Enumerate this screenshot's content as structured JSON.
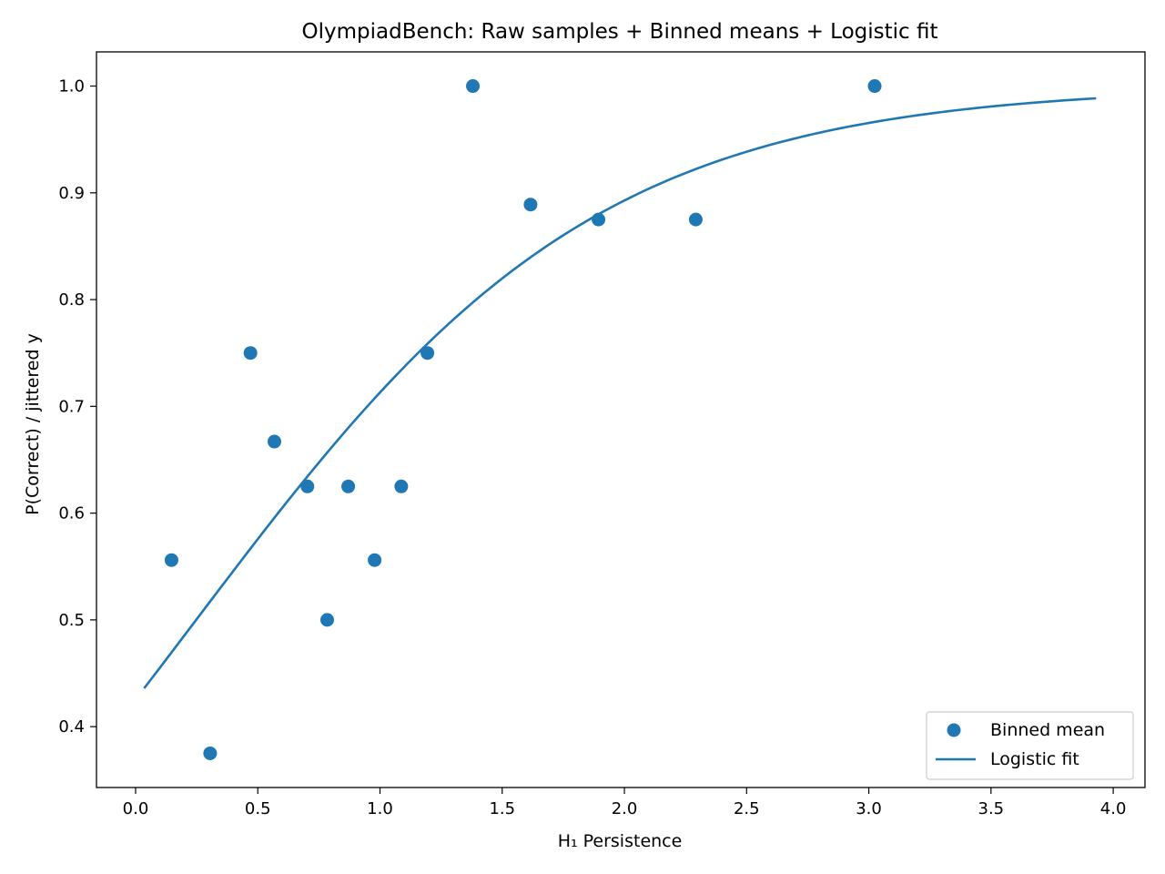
{
  "chart_data": {
    "type": "scatter",
    "title": "OlympiadBench: Raw samples + Binned means + Logistic fit",
    "xlabel": "H₁ Persistence",
    "ylabel": "P(Correct) / jittered y",
    "xlim": [
      -0.16,
      4.13
    ],
    "ylim": [
      0.343,
      1.032
    ],
    "xticks": [
      0.0,
      0.5,
      1.0,
      1.5,
      2.0,
      2.5,
      3.0,
      3.5,
      4.0
    ],
    "xtick_labels": [
      "0.0",
      "0.5",
      "1.0",
      "1.5",
      "2.0",
      "2.5",
      "3.0",
      "3.5",
      "4.0"
    ],
    "yticks": [
      0.4,
      0.5,
      0.6,
      0.7,
      0.8,
      0.9,
      1.0
    ],
    "ytick_labels": [
      "0.4",
      "0.5",
      "0.6",
      "0.7",
      "0.8",
      "0.9",
      "1.0"
    ],
    "color": "#1f77b4",
    "series": [
      {
        "name": "Binned mean",
        "kind": "scatter",
        "x": [
          0.147,
          0.305,
          0.47,
          0.568,
          0.703,
          0.784,
          0.87,
          0.978,
          1.087,
          1.194,
          1.38,
          1.616,
          1.894,
          2.292,
          3.024
        ],
        "y": [
          0.556,
          0.375,
          0.75,
          0.667,
          0.625,
          0.5,
          0.625,
          0.556,
          0.625,
          0.75,
          1.0,
          0.889,
          0.875,
          0.875,
          1.0
        ]
      },
      {
        "name": "Logistic fit",
        "kind": "line",
        "x_range": [
          0.035,
          3.93
        ],
        "intercept": -0.3,
        "slope": 1.21
      }
    ],
    "legend": {
      "position": "lower-right",
      "entries": [
        "Binned mean",
        "Logistic fit"
      ]
    }
  }
}
